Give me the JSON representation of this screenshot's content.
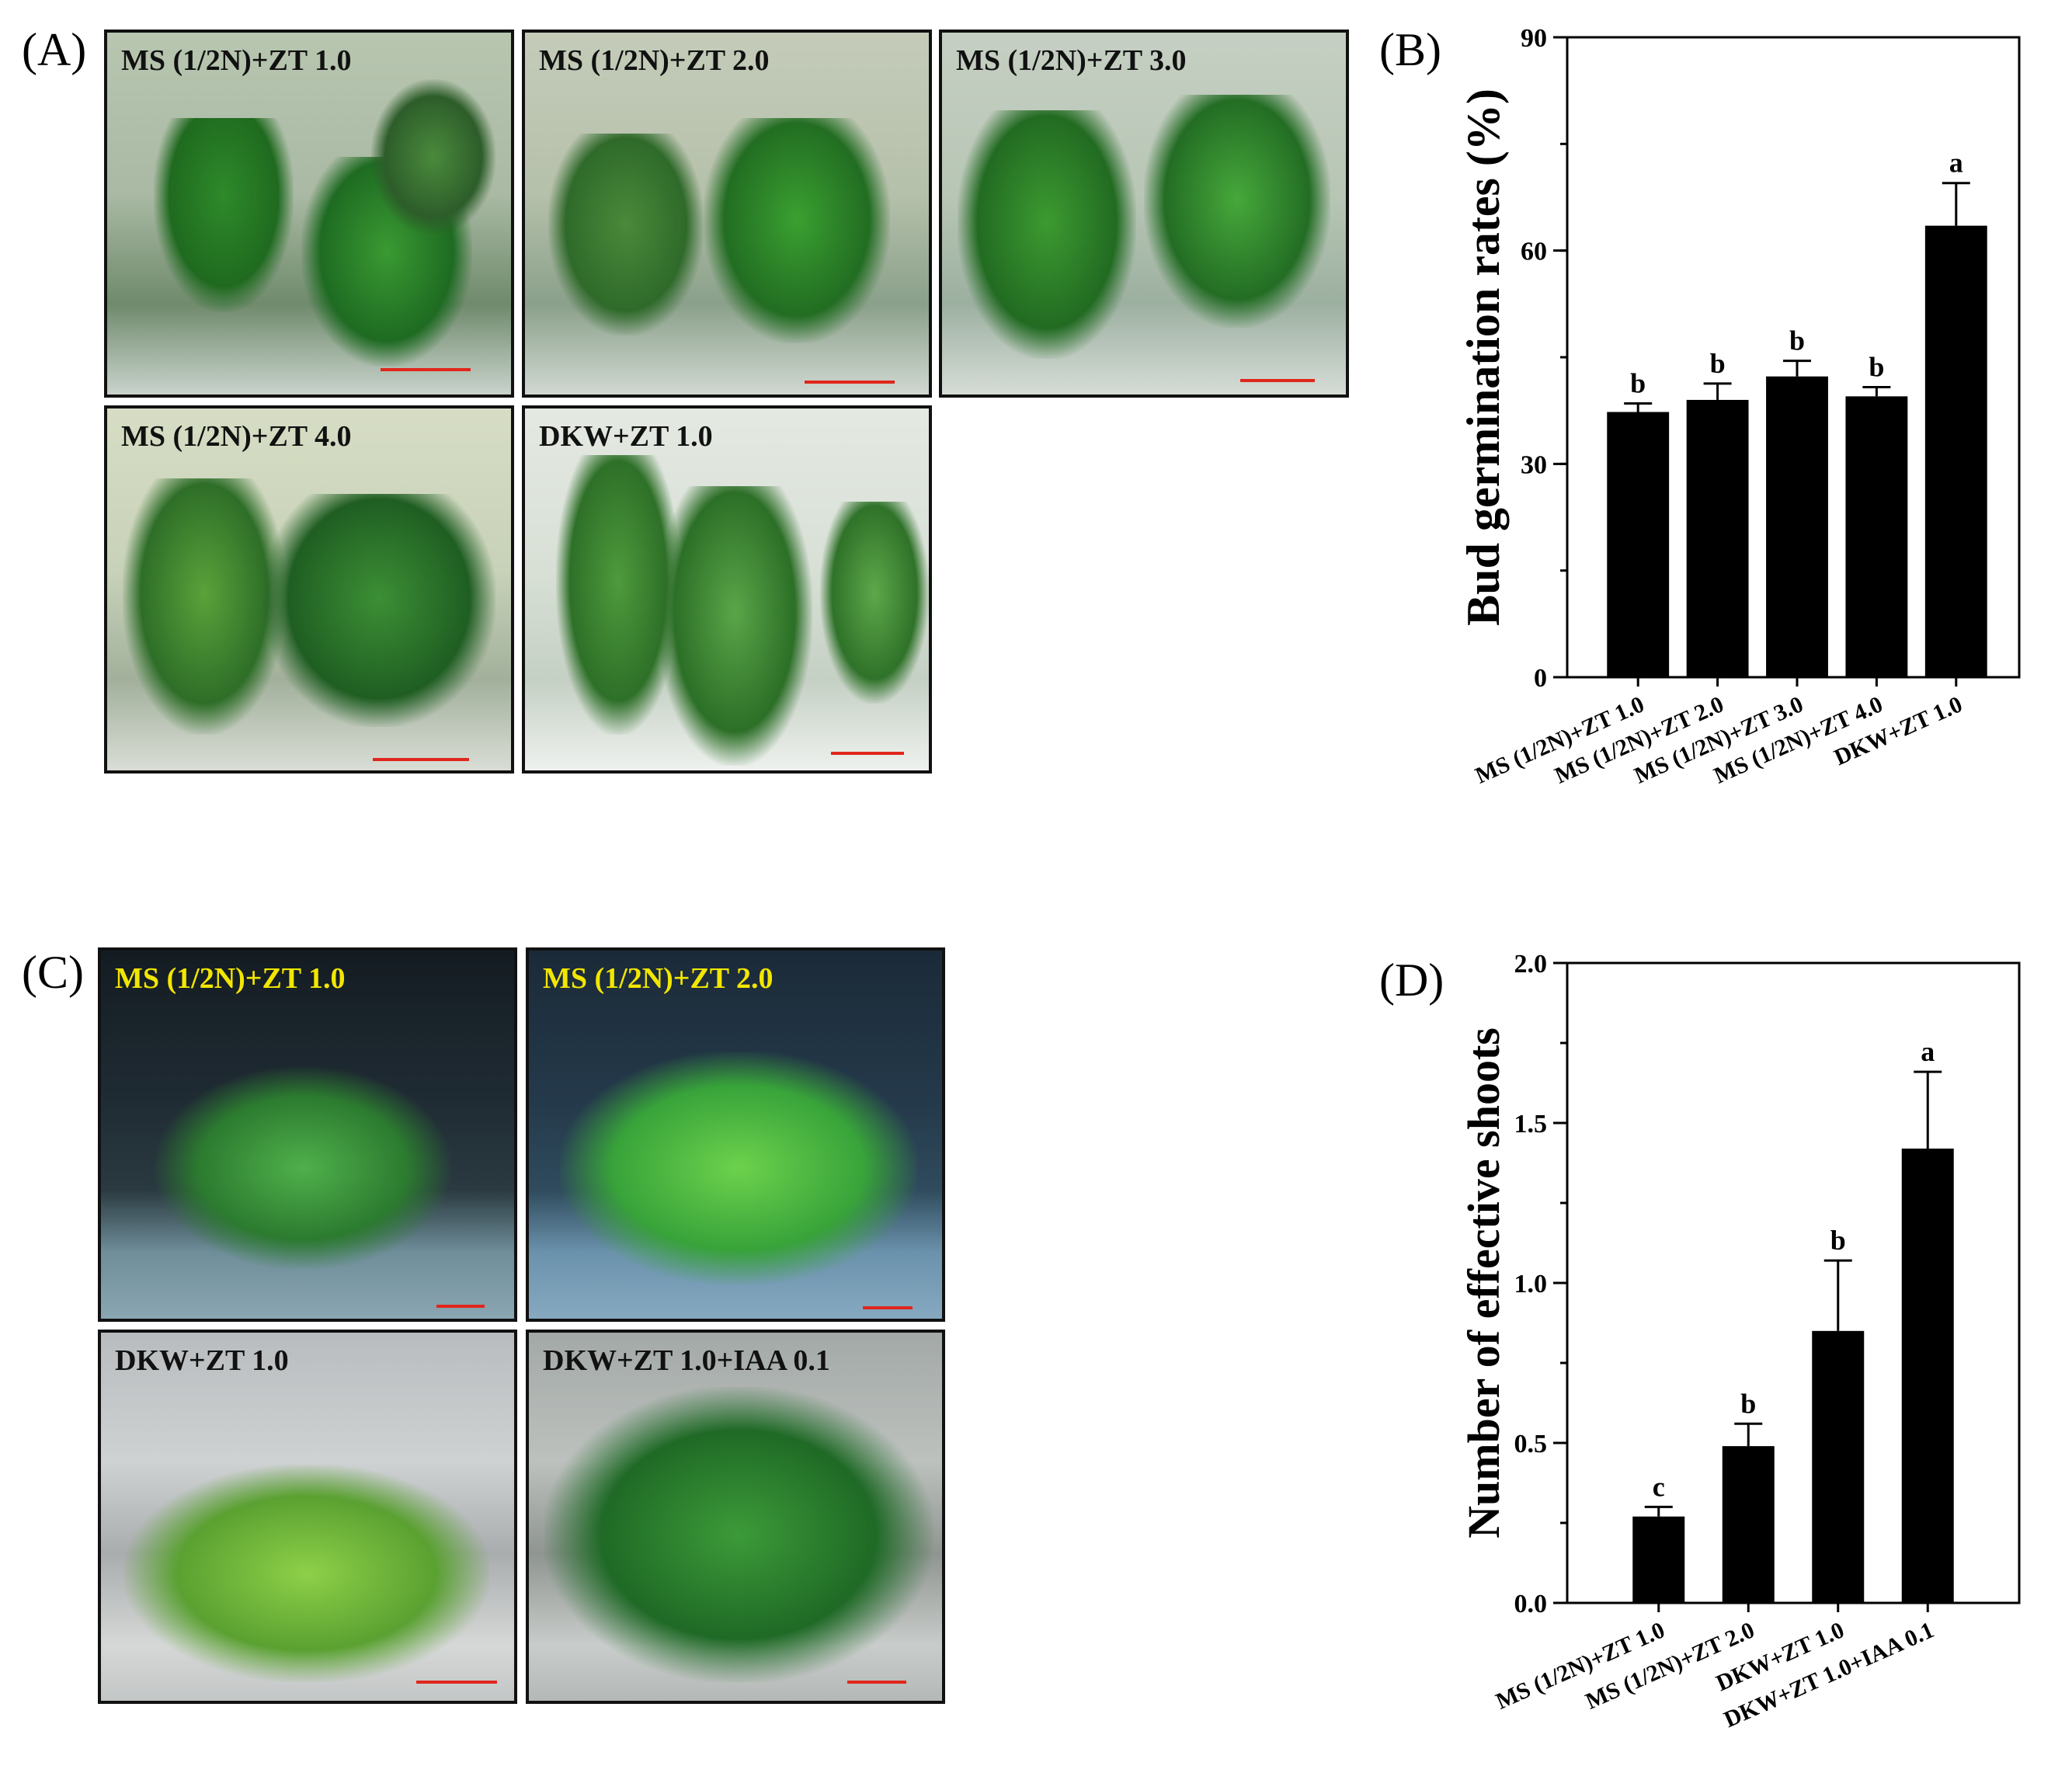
{
  "panels": {
    "a": {
      "label": "(A)",
      "photos": [
        {
          "caption": "MS (1/2N)+ZT 1.0",
          "theme": "dish"
        },
        {
          "caption": "MS (1/2N)+ZT 2.0",
          "theme": "dish"
        },
        {
          "caption": "MS (1/2N)+ZT 3.0",
          "theme": "dish"
        },
        {
          "caption": "MS (1/2N)+ZT 4.0",
          "theme": "dish"
        },
        {
          "caption": "DKW+ZT 1.0",
          "theme": "dish-light"
        }
      ]
    },
    "b": {
      "label": "(B)"
    },
    "c": {
      "label": "(C)",
      "photos": [
        {
          "caption": "MS (1/2N)+ZT 1.0",
          "theme": "dark"
        },
        {
          "caption": "MS (1/2N)+ZT 2.0",
          "theme": "dark-blue"
        },
        {
          "caption": "DKW+ZT 1.0",
          "theme": "silver"
        },
        {
          "caption": "DKW+ZT 1.0+IAA 0.1",
          "theme": "silver-green"
        }
      ]
    },
    "d": {
      "label": "(D)"
    }
  },
  "colors": {
    "bar": "#000000",
    "scale_bar": "#e0261c",
    "caption_dark_bg": "#f2e600",
    "caption_light_bg": "#111111"
  },
  "chart_data": [
    {
      "type": "bar",
      "categories": [
        "MS (1/2N)+ZT 1.0",
        "MS (1/2N)+ZT 2.0",
        "MS (1/2N)+ZT 3.0",
        "MS (1/2N)+ZT 4.0",
        "DKW+ZT 1.0"
      ],
      "values": [
        37.3,
        39.0,
        42.3,
        39.5,
        63.5
      ],
      "errors": [
        1.2,
        2.3,
        2.2,
        1.3,
        6.0
      ],
      "significance": [
        "b",
        "b",
        "b",
        "b",
        "a"
      ],
      "ylabel": "Bud germination rates (%)",
      "xlabel": "",
      "ylim": [
        0,
        90
      ],
      "yticks": [
        0,
        30,
        60,
        90
      ],
      "yticks_minor_step": 15
    },
    {
      "type": "bar",
      "categories": [
        "MS (1/2N)+ZT 1.0",
        "MS (1/2N)+ZT 2.0",
        "DKW+ZT 1.0",
        "DKW+ZT 1.0+IAA 0.1"
      ],
      "values": [
        0.27,
        0.49,
        0.85,
        1.42
      ],
      "errors": [
        0.03,
        0.07,
        0.22,
        0.24
      ],
      "significance": [
        "c",
        "b",
        "b",
        "a"
      ],
      "ylabel": "Number of effective shoots",
      "xlabel": "",
      "ylim": [
        0,
        2.0
      ],
      "yticks": [
        "0.0",
        "0.5",
        "1.0",
        "1.5",
        "2.0"
      ],
      "yticks_minor_step": 0.25
    }
  ]
}
